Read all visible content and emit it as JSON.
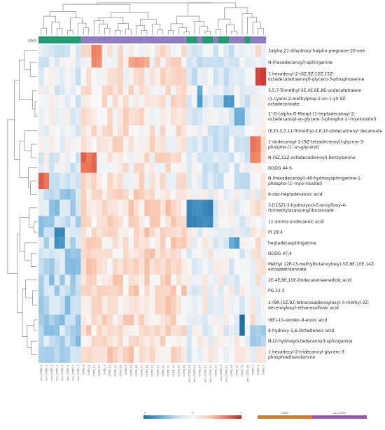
{
  "chart_data": {
    "type": "heatmap",
    "class_label": "class",
    "rows": [
      "3alpha,21-dihydroxy-5alpha-pregnane-20-one",
      "N-(hexadecanoyl)-sphinganine",
      "1-hexadecyl-2-(6Z,9Z,12Z,15Z-octadecatetraenoyl)-glycero-3-phosphoserine",
      "3,5,7-Trimethyl-2E,4E,6E,8E-undecatetraene",
      "(1-cyano-2-methylprop-2-en-1-yl) 9Z-octadecenoate",
      "2'-O-(alpha-D-Manp)-(1-heptadecanoyl-2-octadecanoyl-sn-glycero-3-phospho-1'-myoinositol)",
      "(E,E)-3,7,11-Trimethyl-2,6,10-dodecatrienyl decanoate",
      "1-dodecanoyl-2-(9Z-tetradecenoyl)-glycero-3-phospho-(1'-sn-glycerol)",
      "N-(9Z,12Z-octadecadienoyl) benzylamine",
      "DGDG 44:6",
      "N-(hexadecanoyl)-4R-hydroxysphinganine-1-phospho-(1'-myo-inositol)",
      "9-oxo-heptadecanoic acid",
      "3-[(15Z)-3-hydroxyoct-5-enoyl]oxy-4-(trimethylazaniumyl)butanoate",
      "11-amino-undecanoic acid",
      "PI 28:4",
      "heptadecasphinganine",
      "DGDG 47:4",
      "Methyl 12R-(3-methylbutanoyloxy)-5Z,8E,10E,14Z-eicosatetraenoate",
      "2E,4E,8E,10E-Dodecatetraenedioic acid",
      "PG 22:3",
      "2-(9R-(5Z,9Z-tetracosadienoyloxy)-3-methyl-2Z-decenoyloxy)-ethanesulfonic acid",
      "(8E)-10-oxodec-8-enoic acid",
      "8-hydroxy-5,6-Octadienoic acid",
      "N-(2-hydroxyoctadecanoyl)-sphinganine",
      "1-hexadecyl-2-tridecanoyl-glycero-3-phosphoethanolamine"
    ],
    "row_label_lines": [
      [
        "3alpha,21-dihydroxy-5alpha-pregnane-20-one"
      ],
      [
        "N-(hexadecanoyl)-sphinganine"
      ],
      [
        "1-hexadecyl-2-(6Z,9Z,12Z,15Z-",
        "octadecatetraenoyl)-glycero-3-phosphoserine"
      ],
      [
        "3,5,7-Trimethyl-2E,4E,6E,8E-undecatetraene"
      ],
      [
        "(1-cyano-2-methylprop-2-en-1-yl) 9Z-",
        "octadecenoate"
      ],
      [
        "2'-O-(alpha-D-Manp)-(1-heptadecanoyl-2-",
        "octadecanoyl-sn-glycero-3-phospho-1'-myoinositol)"
      ],
      [
        "(E,E)-3,7,11-Trimethyl-2,6,10-dodecatrienyl decanoate"
      ],
      [
        "1-dodecanoyl-2-(9Z-tetradecenoyl)-glycero-3-",
        "phospho-(1'-sn-glycerol)"
      ],
      [
        "N-(9Z,12Z-octadecadienoyl) benzylamine"
      ],
      [
        "DGDG 44:6"
      ],
      [
        "N-(hexadecanoyl)-4R-hydroxysphinganine-1-",
        "phospho-(1'-myo-inositol)"
      ],
      [
        "9-oxo-heptadecanoic acid"
      ],
      [
        "3-[(15Z)-3-hydroxyoct-5-enoyl]oxy-4-",
        "(trimethylazaniumyl)butanoate"
      ],
      [
        "11-amino-undecanoic acid"
      ],
      [
        "PI 28:4"
      ],
      [
        "heptadecasphinganine"
      ],
      [
        "DGDG 47:4"
      ],
      [
        "Methyl 12R-(3-methylbutanoyloxy)-5Z,8E,10E,14Z-",
        "eicosatetraenoate"
      ],
      [
        "2E,4E,8E,10E-Dodecatetraenedioic acid"
      ],
      [
        "PG 22:3"
      ],
      [
        "2-(9R-(5Z,9Z-tetracosadienoyloxy)-3-methyl-2Z-",
        "decenoyloxy)-ethanesulfonic acid"
      ],
      [
        "(8E)-10-oxodec-8-enoic acid"
      ],
      [
        "8-hydroxy-5,6-Octadienoic acid"
      ],
      [
        "N-(2-hydroxyoctadecanoyl)-sphinganine"
      ],
      [
        "1-hexadecyl-2-tridecanoyl-glycero-3-",
        "phosphoethanolamine"
      ]
    ],
    "row_heights": [
      1.5,
      1.3,
      2.2,
      1.2,
      1.5,
      2.2,
      1.3,
      2.0,
      1.3,
      1.2,
      2.0,
      1.3,
      2.0,
      1.4,
      1.2,
      1.4,
      1.2,
      2.0,
      1.3,
      1.3,
      2.3,
      1.3,
      1.3,
      1.3,
      2.0
    ],
    "columns": [
      "non_COPD_5",
      "non_COPD_1",
      "non_COPD_2",
      "non_COPD_3",
      "non_COPD_4",
      "non_COPD_6",
      "non_COPD_7",
      "non_COPD_8",
      "COPD_8",
      "COPD_6",
      "COPD_10",
      "COPD_12",
      "COPD_3",
      "COPD_11",
      "COPD_13",
      "COPD_15",
      "COPD_9",
      "COPD_14",
      "COPD_16",
      "COPD_17",
      "COPD_18",
      "COPD_19",
      "COPD_20",
      "COPD_22",
      "COPD_21",
      "COPD_23",
      "COPD_24",
      "COPD_25",
      "non_COPD_14",
      "non_COPD_13",
      "COPD_26",
      "non_COPD_10",
      "non_COPD_11",
      "COPD_27",
      "non_COPD_9",
      "non_COPD_12",
      "COPD_28",
      "COPD_29",
      "COPD_30",
      "non_COPD_16",
      "COPD_1",
      "COPD_5",
      "COPD_2"
    ],
    "column_class": [
      "non_COPD",
      "non_COPD",
      "non_COPD",
      "non_COPD",
      "non_COPD",
      "non_COPD",
      "non_COPD",
      "non_COPD",
      "COPD",
      "COPD",
      "COPD",
      "COPD",
      "COPD",
      "COPD",
      "COPD",
      "COPD",
      "COPD",
      "COPD",
      "COPD",
      "COPD",
      "COPD",
      "COPD",
      "COPD",
      "COPD",
      "COPD",
      "COPD",
      "COPD",
      "COPD",
      "non_COPD",
      "non_COPD",
      "COPD",
      "non_COPD",
      "non_COPD",
      "COPD",
      "non_COPD",
      "non_COPD",
      "COPD",
      "COPD",
      "COPD",
      "non_COPD",
      "COPD",
      "COPD",
      "COPD"
    ],
    "groups": [
      {
        "name": "non_COPD",
        "start": 0,
        "end": 8
      },
      {
        "name": "COPD",
        "start": 8,
        "end": 28
      },
      {
        "name": "non_COPD",
        "start": 28,
        "end": 40
      },
      {
        "name": "COPD",
        "start": 40,
        "end": 43
      }
    ],
    "hotspots": [
      {
        "rows": [
          0,
          1
        ],
        "cols": [
          10,
          11
        ],
        "v": 1.9
      },
      {
        "rows": [
          1,
          1
        ],
        "cols": [
          17,
          20
        ],
        "v": 1.6
      },
      {
        "rows": [
          2,
          2
        ],
        "cols": [
          41,
          42
        ],
        "v": 2.6
      },
      {
        "rows": [
          3,
          4
        ],
        "cols": [
          30,
          30
        ],
        "v": -2.0
      },
      {
        "rows": [
          4,
          4
        ],
        "cols": [
          35,
          36
        ],
        "v": -2.3
      },
      {
        "rows": [
          5,
          5
        ],
        "cols": [
          37,
          38
        ],
        "v": -1.8
      },
      {
        "rows": [
          7,
          8
        ],
        "cols": [
          40,
          41
        ],
        "v": 2.0
      },
      {
        "rows": [
          8,
          9
        ],
        "cols": [
          8,
          10
        ],
        "v": 2.2
      },
      {
        "rows": [
          10,
          10
        ],
        "cols": [
          0,
          1
        ],
        "v": 2.2
      },
      {
        "rows": [
          12,
          13
        ],
        "cols": [
          28,
          32
        ],
        "v": -2.5
      },
      {
        "rows": [
          14,
          15
        ],
        "cols": [
          3,
          4
        ],
        "v": -2.4
      },
      {
        "rows": [
          15,
          15
        ],
        "cols": [
          36,
          37
        ],
        "v": -2.0
      },
      {
        "rows": [
          21,
          22
        ],
        "cols": [
          38,
          38
        ],
        "v": -3.0
      },
      {
        "rows": [
          21,
          22
        ],
        "cols": [
          1,
          3
        ],
        "v": -1.4
      },
      {
        "rows": [
          22,
          23
        ],
        "cols": [
          40,
          42
        ],
        "v": -1.2
      }
    ],
    "colorscale": {
      "min": -3,
      "max": 3,
      "colors": [
        "#1f6fa3",
        "#5aa6d5",
        "#c4def0",
        "#f7f7f7",
        "#f9cdb7",
        "#ef7f5c",
        "#c4222b"
      ]
    },
    "class_colors": {
      "COPD": "#e8732a",
      "non_COPD": "#9b59b6"
    },
    "cell_colors": {
      "non_COPD": "#1e9e6e",
      "COPD": "#8e7cc3"
    },
    "legend": {
      "scale_labels": [
        "-3",
        "0",
        "3"
      ],
      "class_labels": [
        "COPD",
        "non_COPD"
      ]
    }
  }
}
